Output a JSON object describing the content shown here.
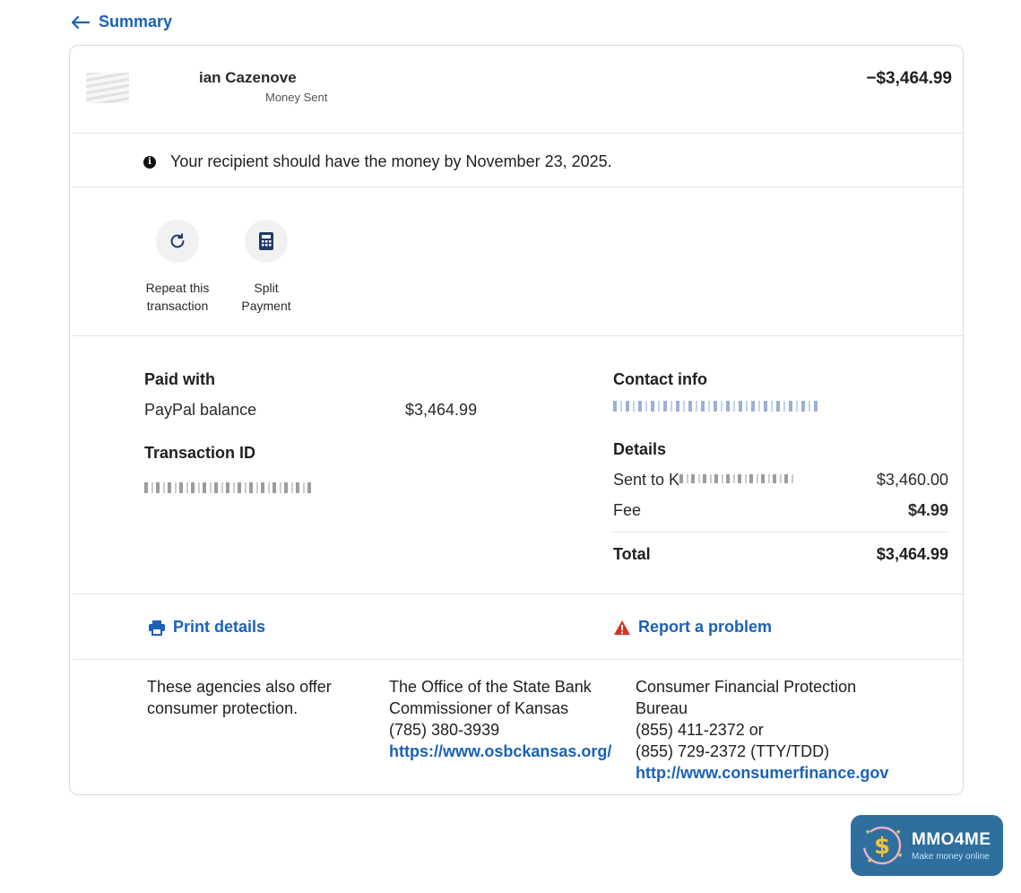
{
  "nav": {
    "back_label": "Summary"
  },
  "header": {
    "name_partial": "ian Cazenove",
    "subtitle_partial": "Money Sent",
    "amount": "−$3,464.99"
  },
  "notice": {
    "text": "Your recipient should have the money by November 23, 2025."
  },
  "actions": [
    {
      "label_line1": "Repeat this",
      "label_line2": "transaction",
      "icon": "refresh-icon"
    },
    {
      "label_line1": "Split",
      "label_line2": "Payment",
      "icon": "calculator-icon"
    }
  ],
  "paid_with": {
    "title": "Paid with",
    "method": "PayPal balance",
    "amount": "$3,464.99"
  },
  "transaction_id": {
    "title": "Transaction ID"
  },
  "contact_info": {
    "title": "Contact info"
  },
  "details": {
    "title": "Details",
    "sent_to_prefix": "Sent to K",
    "sent_to_amount": "$3,460.00",
    "fee_label": "Fee",
    "fee_amount": "$4.99",
    "total_label": "Total",
    "total_amount": "$3,464.99"
  },
  "links": {
    "print": "Print details",
    "report": "Report a problem"
  },
  "agencies": {
    "intro_line1": "These agencies also offer",
    "intro_line2": "consumer protection.",
    "kansas_line1": "The Office of the State Bank",
    "kansas_line2": "Commissioner of Kansas",
    "kansas_phone": "(785) 380-3939",
    "kansas_url": "https://www.osbckansas.org/",
    "cfpb_line1": "Consumer Financial Protection",
    "cfpb_line2": "Bureau",
    "cfpb_phone1": "(855) 411-2372 or",
    "cfpb_phone2": "(855) 729-2372 (TTY/TDD)",
    "cfpb_url": "http://www.consumerfinance.gov"
  },
  "badge": {
    "title": "MMO4ME",
    "tagline": "Make money online"
  },
  "colors": {
    "link": "#1a62b5",
    "warning": "#d0342c",
    "badge_bg": "#2e6f9e"
  }
}
